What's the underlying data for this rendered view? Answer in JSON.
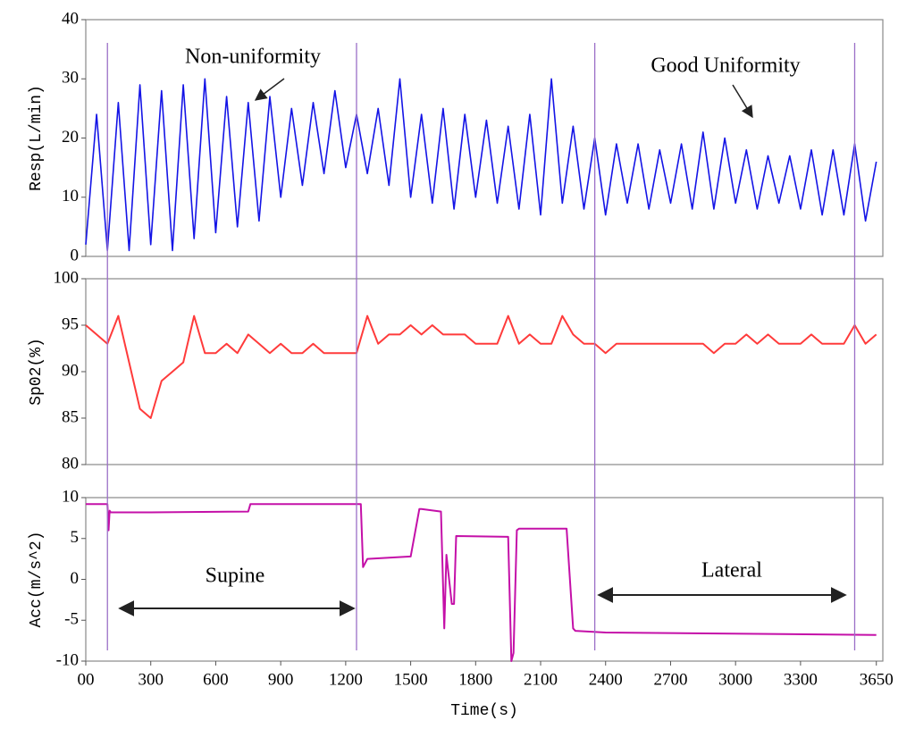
{
  "chart_data": [
    {
      "type": "line",
      "ylabel": "Resp(L/min)",
      "color": "#1414e6",
      "xlim": [
        0,
        3680
      ],
      "ylim": [
        0,
        40
      ],
      "yticks": [
        0,
        10,
        20,
        30,
        40
      ],
      "annotation": "Non-uniformity",
      "annotation2": "Good Uniformity",
      "x": [
        0,
        50,
        100,
        150,
        200,
        250,
        300,
        350,
        400,
        450,
        500,
        550,
        600,
        650,
        700,
        750,
        800,
        850,
        900,
        950,
        1000,
        1050,
        1100,
        1150,
        1200,
        1250,
        1300,
        1350,
        1400,
        1450,
        1500,
        1550,
        1600,
        1650,
        1700,
        1750,
        1800,
        1850,
        1900,
        1950,
        2000,
        2050,
        2100,
        2150,
        2200,
        2250,
        2300,
        2350,
        2400,
        2450,
        2500,
        2550,
        2600,
        2650,
        2700,
        2750,
        2800,
        2850,
        2900,
        2950,
        3000,
        3050,
        3100,
        3150,
        3200,
        3250,
        3300,
        3350,
        3400,
        3450,
        3500,
        3550,
        3600,
        3650
      ],
      "values": [
        2,
        24,
        1,
        26,
        1,
        29,
        2,
        28,
        1,
        29,
        3,
        30,
        4,
        27,
        5,
        26,
        6,
        27,
        10,
        25,
        12,
        26,
        14,
        28,
        15,
        24,
        14,
        25,
        12,
        30,
        10,
        24,
        9,
        25,
        8,
        24,
        10,
        23,
        9,
        22,
        8,
        24,
        7,
        30,
        9,
        22,
        8,
        20,
        7,
        19,
        9,
        19,
        8,
        18,
        9,
        19,
        8,
        21,
        8,
        20,
        9,
        18,
        8,
        17,
        9,
        17,
        8,
        18,
        7,
        18,
        7,
        19,
        6,
        16
      ]
    },
    {
      "type": "line",
      "ylabel": "Sp02(%)",
      "color": "#ff3b3b",
      "xlim": [
        0,
        3680
      ],
      "ylim": [
        80,
        100
      ],
      "yticks": [
        80,
        85,
        90,
        95,
        100
      ],
      "x": [
        0,
        50,
        100,
        150,
        200,
        250,
        300,
        350,
        400,
        450,
        500,
        550,
        600,
        650,
        700,
        750,
        800,
        850,
        900,
        950,
        1000,
        1050,
        1100,
        1150,
        1200,
        1250,
        1300,
        1350,
        1400,
        1450,
        1500,
        1550,
        1600,
        1650,
        1700,
        1750,
        1800,
        1850,
        1900,
        1950,
        2000,
        2050,
        2100,
        2150,
        2200,
        2250,
        2300,
        2350,
        2400,
        2450,
        2500,
        2550,
        2600,
        2650,
        2700,
        2750,
        2800,
        2850,
        2900,
        2950,
        3000,
        3050,
        3100,
        3150,
        3200,
        3250,
        3300,
        3350,
        3400,
        3450,
        3500,
        3550,
        3600,
        3650
      ],
      "values": [
        95,
        94,
        93,
        96,
        91,
        86,
        85,
        89,
        90,
        91,
        96,
        92,
        92,
        93,
        92,
        94,
        93,
        92,
        93,
        92,
        92,
        93,
        92,
        92,
        92,
        92,
        96,
        93,
        94,
        94,
        95,
        94,
        95,
        94,
        94,
        94,
        93,
        93,
        93,
        96,
        93,
        94,
        93,
        93,
        96,
        94,
        93,
        93,
        92,
        93,
        93,
        93,
        93,
        93,
        93,
        93,
        93,
        93,
        92,
        93,
        93,
        94,
        93,
        94,
        93,
        93,
        93,
        94,
        93,
        93,
        93,
        95,
        93,
        94
      ]
    },
    {
      "type": "line",
      "ylabel": "Acc(m/s^2)",
      "xlabel": "Time(s)",
      "color": "#c410a8",
      "xlim": [
        0,
        3680
      ],
      "ylim": [
        -10,
        10
      ],
      "yticks": [
        -10,
        -5,
        0,
        5,
        10
      ],
      "xticks": [
        {
          "value": 0,
          "label": "00"
        },
        300,
        600,
        900,
        1200,
        1500,
        1800,
        2100,
        2400,
        2700,
        3000,
        3300,
        3650
      ],
      "annotation": "Supine",
      "annotation2": "Lateral",
      "x": [
        0,
        100,
        105,
        110,
        115,
        300,
        750,
        760,
        1270,
        1280,
        1300,
        1500,
        1540,
        1550,
        1640,
        1655,
        1665,
        1690,
        1700,
        1710,
        1950,
        1965,
        1975,
        1990,
        2000,
        2220,
        2250,
        2260,
        2400,
        3650
      ],
      "values": [
        9.2,
        9.2,
        6,
        8.4,
        8.2,
        8.2,
        8.3,
        9.2,
        9.2,
        1.5,
        2.5,
        2.8,
        8.6,
        8.6,
        8.3,
        -6,
        3,
        -3,
        -3,
        5.3,
        5.2,
        -10,
        -9,
        6,
        6.2,
        6.2,
        -6,
        -6.3,
        -6.5,
        -6.8
      ]
    }
  ],
  "markers": [
    100,
    1250,
    2350,
    3550
  ]
}
